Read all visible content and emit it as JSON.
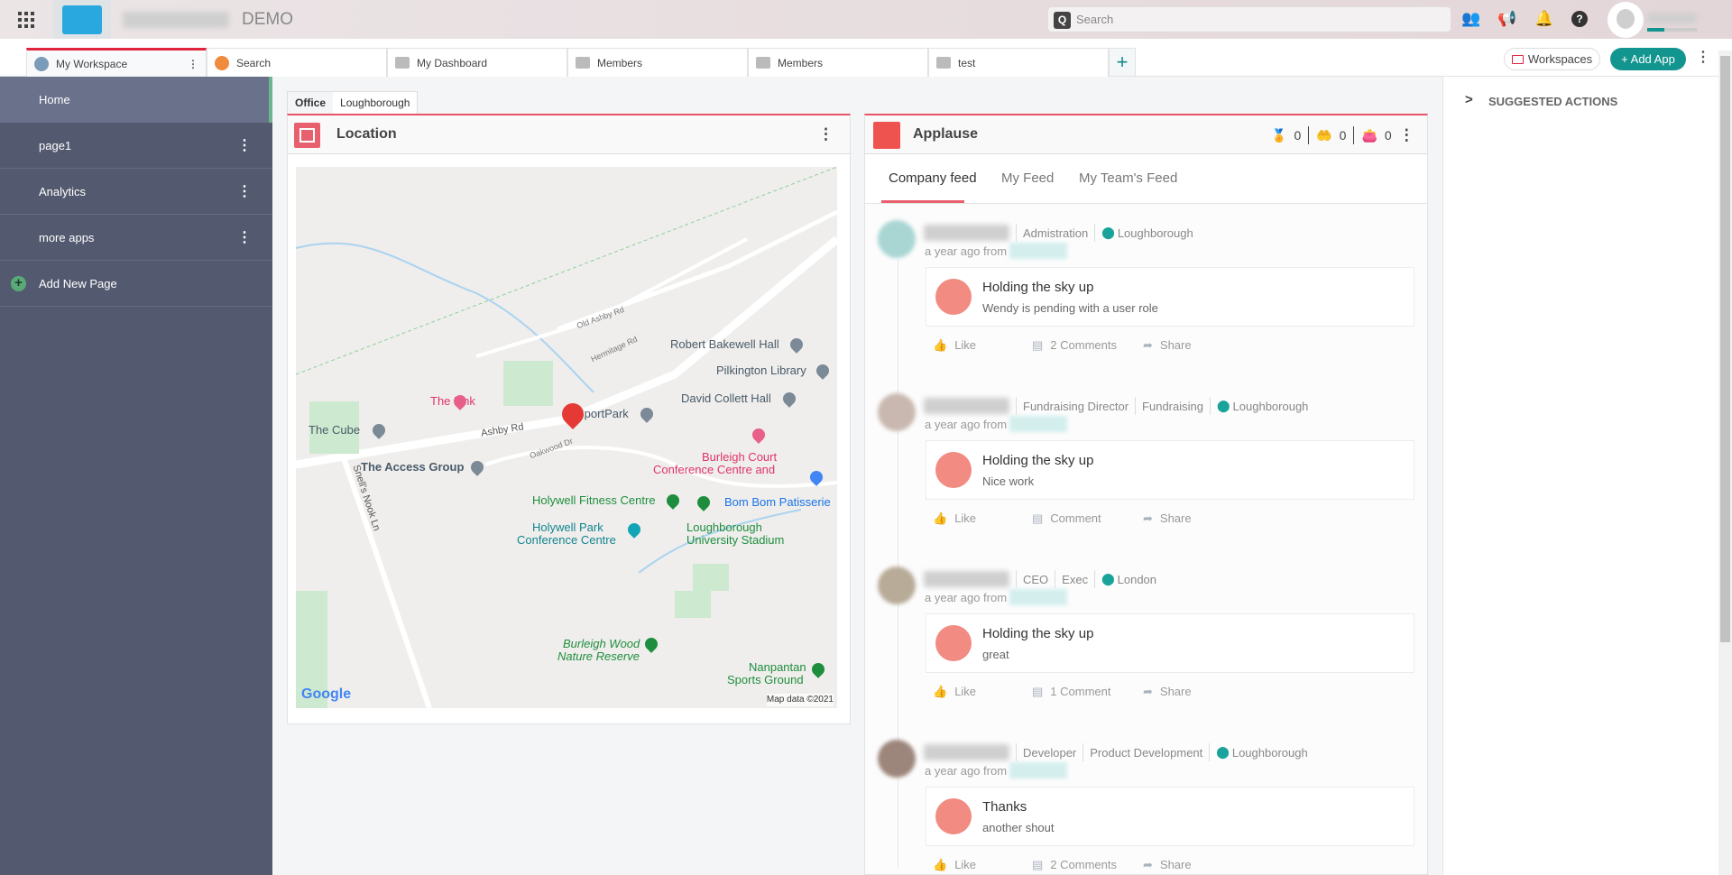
{
  "topbar": {
    "brand_suffix": "DEMO",
    "search_placeholder": "Search",
    "icons": [
      "people-icon",
      "megaphone-icon",
      "bell-icon",
      "help-icon"
    ]
  },
  "tabs": [
    {
      "label": "My Workspace"
    },
    {
      "label": "Search"
    },
    {
      "label": "My Dashboard"
    },
    {
      "label": "Members"
    },
    {
      "label": "Members"
    },
    {
      "label": "test"
    }
  ],
  "add_tab": "+",
  "toolbar": {
    "workspaces": "Workspaces",
    "add_app": "+ Add App"
  },
  "sidebar": {
    "items": [
      {
        "label": "Home"
      },
      {
        "label": "page1"
      },
      {
        "label": "Analytics"
      },
      {
        "label": "more apps"
      }
    ],
    "add_page": "Add New Page"
  },
  "location": {
    "tabs": [
      "Office",
      "Loughborough"
    ],
    "title": "Location",
    "map": {
      "labels": [
        "The Link",
        "SportPark",
        "The Cube",
        "Ashby Rd",
        "The Access Group",
        "Robert Bakewell Hall",
        "Pilkington Library",
        "David Collett Hall",
        "Burleigh Court",
        "Conference Centre and",
        "Holywell Fitness Centre",
        "Bom Bom Patisserie",
        "Holywell Park",
        "Conference Centre",
        "Loughborough",
        "University Stadium",
        "Burleigh Wood",
        "Nature Reserve",
        "Nanpantan",
        "Sports Ground",
        "Snell's Nook Ln",
        "Hermitage Rd",
        "Old Ashby Rd",
        "Oakwood Dr"
      ],
      "google": "Google",
      "attribution": "Map data ©2021"
    }
  },
  "applause": {
    "title": "Applause",
    "counts": [
      "0",
      "0",
      "0"
    ],
    "tabs": [
      "Company feed",
      "My Feed",
      "My Team's Feed"
    ],
    "feed": [
      {
        "role": "",
        "dept": "Admistration",
        "location": "Loughborough",
        "when": "a year ago from",
        "title": "Holding the sky up",
        "message": "Wendy is pending with a user role",
        "like": "Like",
        "comments": "2 Comments",
        "share": "Share",
        "avatar_color": "#a9d5d3",
        "badge": "stars"
      },
      {
        "role": "Fundraising Director",
        "dept": "Fundraising",
        "location": "Loughborough",
        "when": "a year ago from",
        "title": "Holding the sky up",
        "message": "Nice work",
        "like": "Like",
        "comments": "Comment",
        "share": "Share",
        "avatar_color": "#c9b8b0",
        "badge": "stars"
      },
      {
        "role": "CEO",
        "dept": "Exec",
        "location": "London",
        "when": "a year ago from",
        "title": "Holding the sky up",
        "message": "great",
        "like": "Like",
        "comments": "1 Comment",
        "share": "Share",
        "avatar_color": "#b8ab98",
        "badge": "stars"
      },
      {
        "role": "Developer",
        "dept": "Product Development",
        "location": "Loughborough",
        "when": "a year ago from",
        "title": "Thanks",
        "message": "another shout",
        "like": "Like",
        "comments": "2 Comments",
        "share": "Share",
        "avatar_color": "#9c857b",
        "badge": "thumbs-up"
      }
    ]
  },
  "suggested": {
    "title": "SUGGESTED ACTIONS"
  },
  "colors": {
    "accent": "#e0243e",
    "teal": "#13958f",
    "sidebar": "#535a6f"
  }
}
